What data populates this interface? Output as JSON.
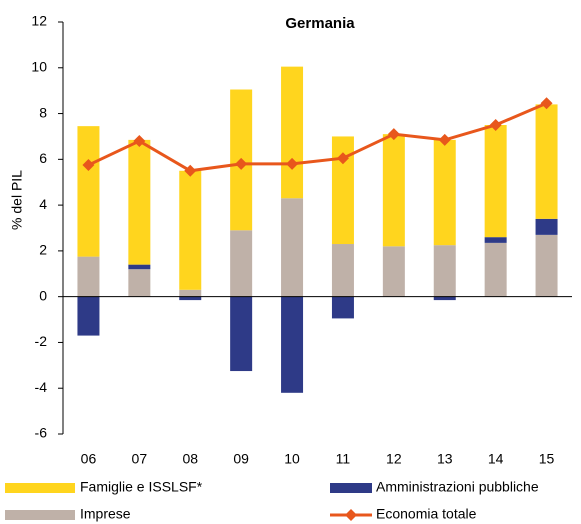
{
  "chart_data": {
    "type": "bar",
    "title": "Germania",
    "y_label": "% del PIL",
    "categories": [
      "06",
      "07",
      "08",
      "09",
      "10",
      "11",
      "12",
      "13",
      "14",
      "15"
    ],
    "ylim": [
      -6,
      12
    ],
    "yticks": [
      -6,
      -4,
      -2,
      0,
      2,
      4,
      6,
      8,
      10,
      12
    ],
    "series": [
      {
        "name": "Famiglie e ISSLSF*",
        "type": "bar",
        "color": "#FFD51E",
        "values": [
          5.7,
          5.45,
          5.2,
          6.15,
          5.75,
          4.7,
          4.9,
          4.6,
          4.9,
          5.0
        ]
      },
      {
        "name": "Amministrazioni pubbliche",
        "type": "bar",
        "color": "#2E3A87",
        "values": [
          -1.7,
          0.2,
          -0.15,
          -3.25,
          -4.2,
          -0.95,
          0,
          -0.15,
          0.25,
          0.7
        ]
      },
      {
        "name": "Imprese",
        "type": "bar",
        "color": "#BFB1A8",
        "values": [
          1.75,
          1.2,
          0.3,
          2.9,
          4.3,
          2.3,
          2.2,
          2.25,
          2.35,
          2.7
        ]
      },
      {
        "name": "Economia totale",
        "type": "line",
        "color": "#E8571C",
        "values": [
          5.75,
          6.8,
          5.5,
          5.8,
          5.8,
          6.05,
          7.1,
          6.85,
          7.5,
          8.45
        ]
      }
    ]
  }
}
